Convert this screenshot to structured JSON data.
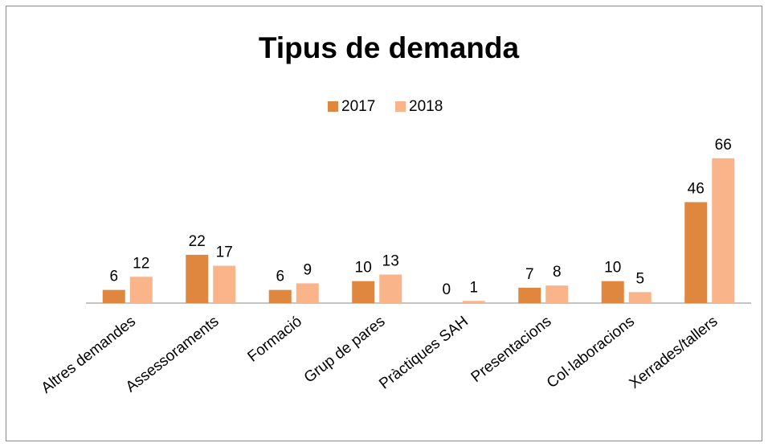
{
  "chart_data": {
    "type": "bar",
    "title": "Tipus de demanda",
    "categories": [
      "Altres demandes",
      "Assessoraments",
      "Formació",
      "Grup de pares",
      "Pràctiques  SAH",
      "Presentacions",
      "Col·laboracions",
      "Xerrades/tallers"
    ],
    "series": [
      {
        "name": "2017",
        "color": "#e0873f",
        "values": [
          6,
          22,
          6,
          10,
          0,
          7,
          10,
          46
        ]
      },
      {
        "name": "2018",
        "color": "#f9b48a",
        "values": [
          12,
          17,
          9,
          13,
          1,
          8,
          5,
          66
        ]
      }
    ],
    "legend": "top"
  }
}
